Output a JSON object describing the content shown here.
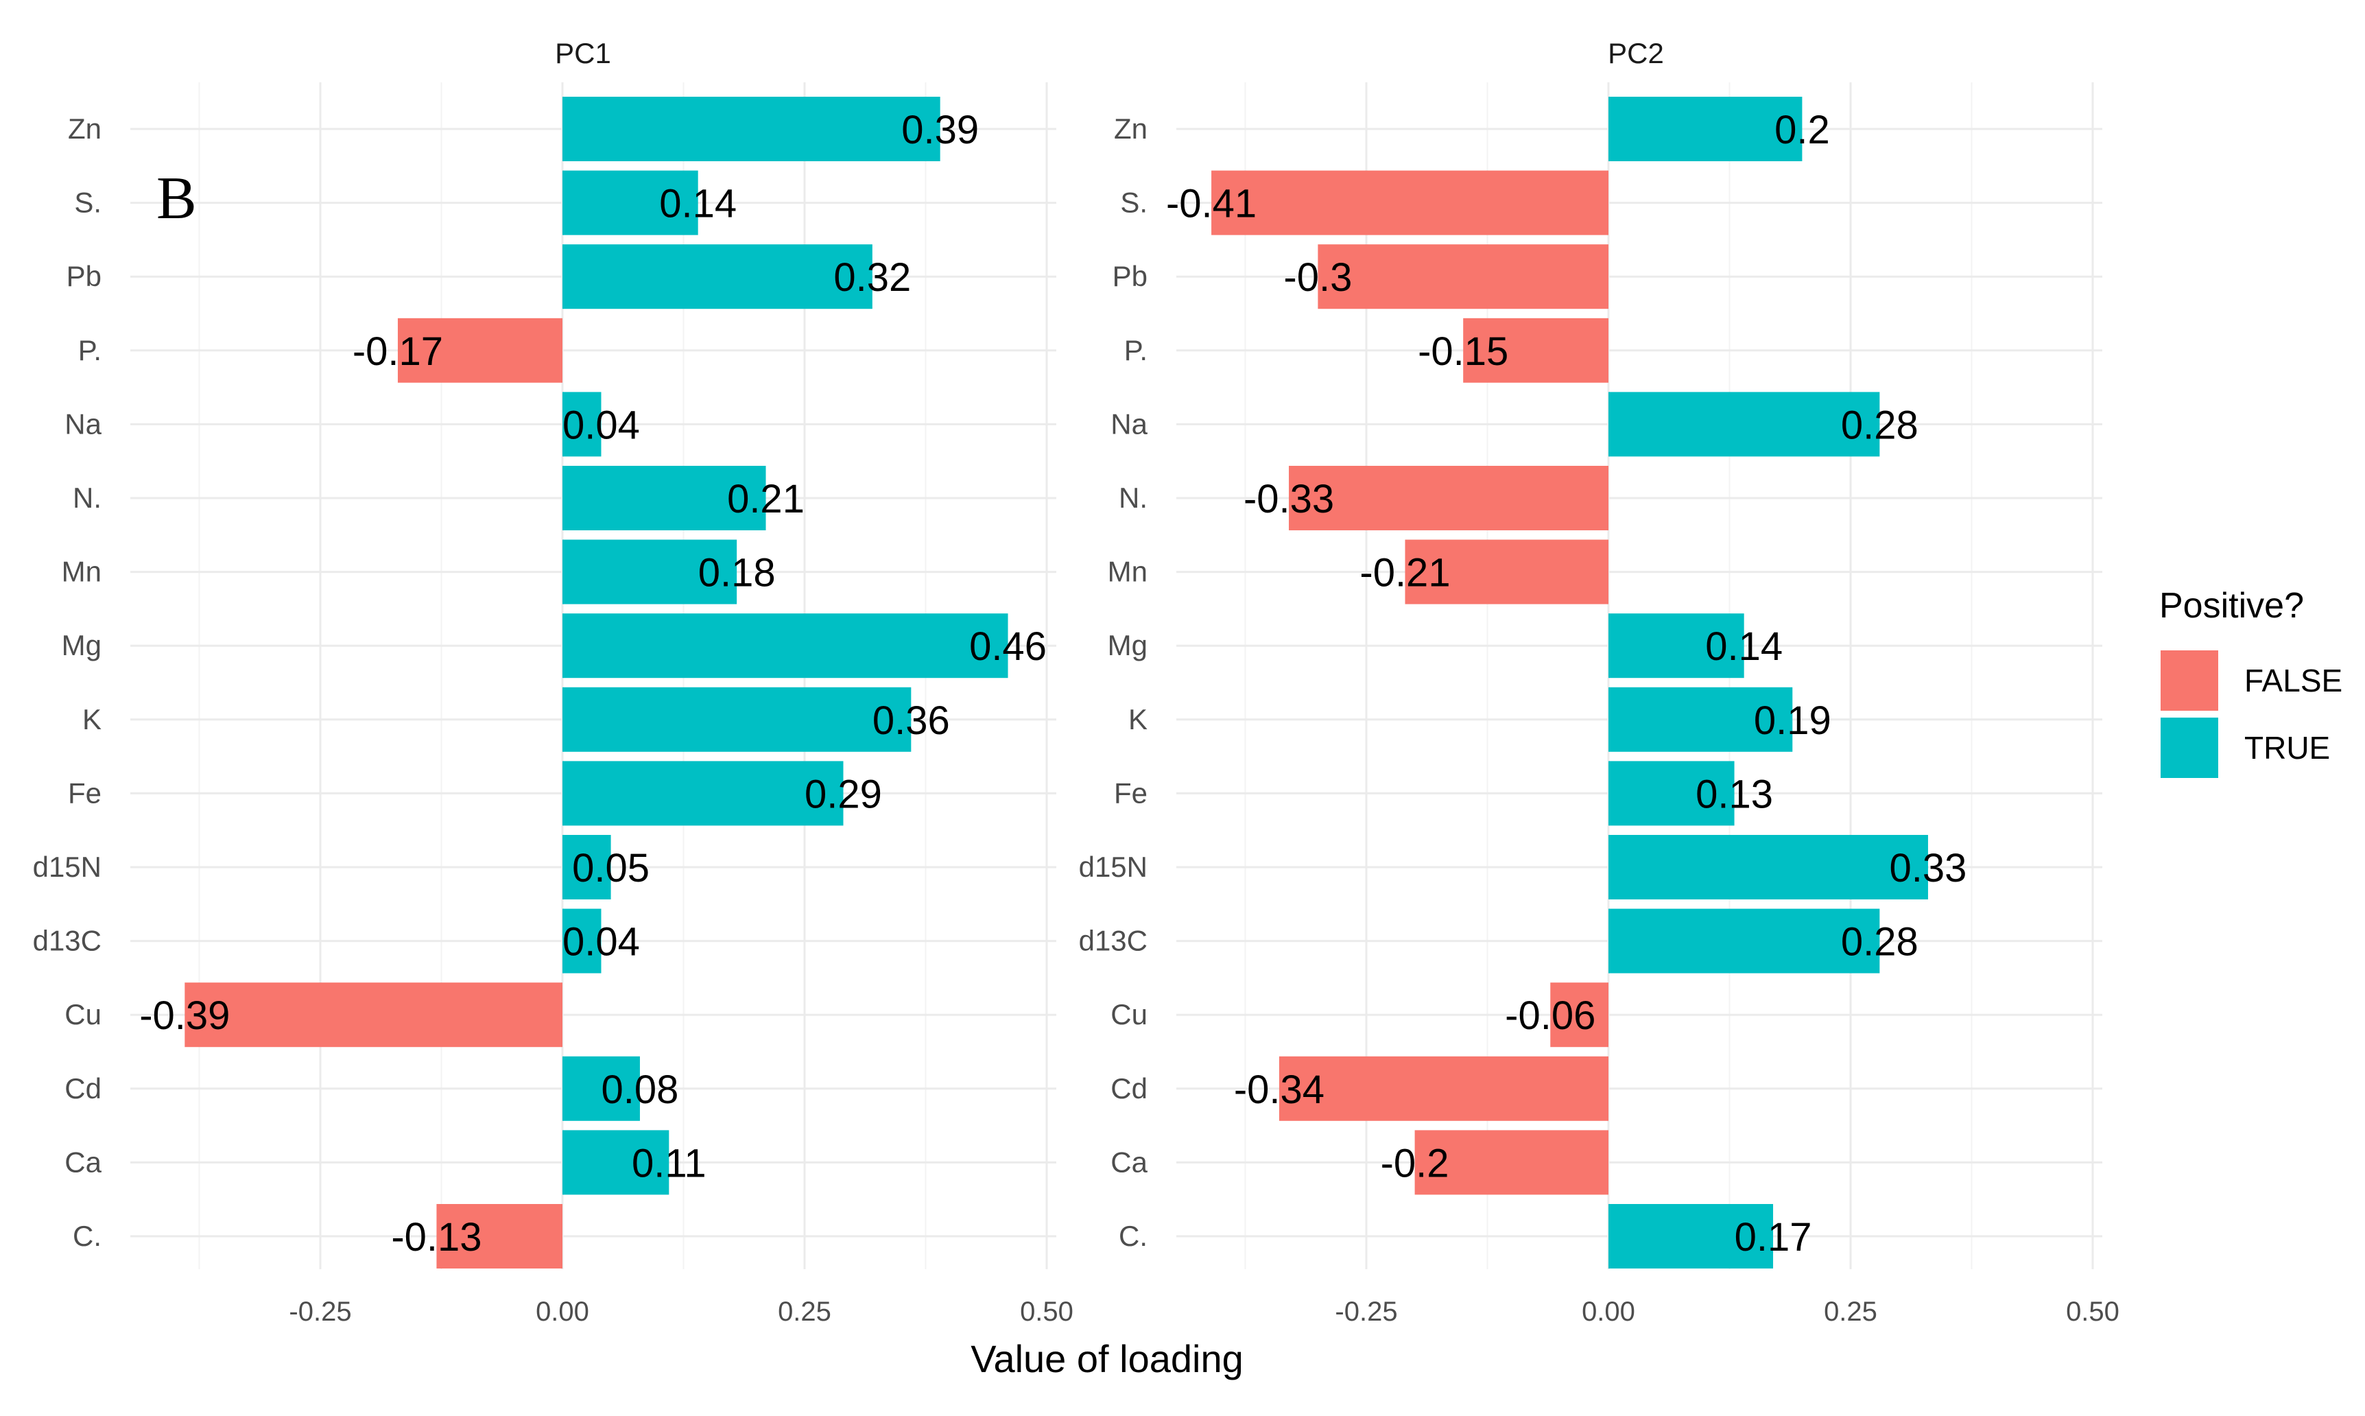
{
  "chart_data": {
    "type": "bar",
    "orientation": "horizontal",
    "panel_tag": "B",
    "xlabel": "Value of loading",
    "xlim": [
      -0.45,
      0.5
    ],
    "xticks": [
      -0.25,
      0.0,
      0.25,
      0.5
    ],
    "xtick_labels": [
      "-0.25",
      "0.00",
      "0.25",
      "0.50"
    ],
    "grid": true,
    "categories": [
      "Zn",
      "S.",
      "Pb",
      "P.",
      "Na",
      "N.",
      "Mn",
      "Mg",
      "K",
      "Fe",
      "d15N",
      "d13C",
      "Cu",
      "Cd",
      "Ca",
      "C."
    ],
    "facets": [
      {
        "name": "PC1",
        "values": [
          0.39,
          0.14,
          0.32,
          -0.17,
          0.04,
          0.21,
          0.18,
          0.46,
          0.36,
          0.29,
          0.05,
          0.04,
          -0.39,
          0.08,
          0.11,
          -0.13
        ],
        "labels": [
          "0.39",
          "0.14",
          "0.32",
          "-0.17",
          "0.04",
          "0.21",
          "0.18",
          "0.46",
          "0.36",
          "0.29",
          "0.05",
          "0.04",
          "-0.39",
          "0.08",
          "0.11",
          "-0.13"
        ]
      },
      {
        "name": "PC2",
        "values": [
          0.2,
          -0.41,
          -0.3,
          -0.15,
          0.28,
          -0.33,
          -0.21,
          0.14,
          0.19,
          0.13,
          0.33,
          0.28,
          -0.06,
          -0.34,
          -0.2,
          0.17
        ],
        "labels": [
          "0.2",
          "-0.41",
          "-0.3",
          "-0.15",
          "0.28",
          "-0.33",
          "-0.21",
          "0.14",
          "0.19",
          "0.13",
          "0.33",
          "0.28",
          "-0.06",
          "-0.34",
          "-0.2",
          "0.17"
        ]
      }
    ],
    "legend": {
      "title": "Positive?",
      "position": "right",
      "entries": [
        {
          "label": "FALSE",
          "color": "#F8766D"
        },
        {
          "label": "TRUE",
          "color": "#00BFC4"
        }
      ]
    }
  }
}
